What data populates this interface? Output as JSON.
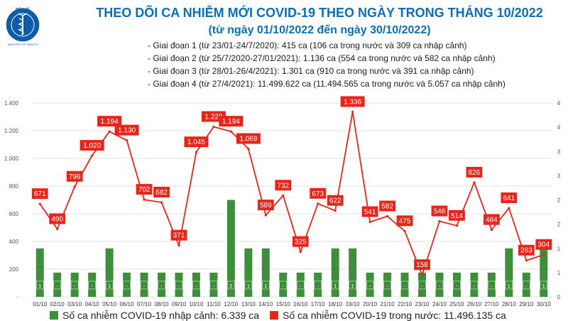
{
  "logo": {
    "top_text": "BỘ Y TẾ",
    "bottom_text": "MINISTRY OF HEALTH",
    "icon": "caduceus-icon"
  },
  "title_line1": "THEO DÕI CA NHIỄM MỚI COVID-19 THEO NGÀY TRONG THÁNG 10/2022",
  "title_line2": "(từ ngày 01/10/2022 đến ngày 30/10/2022)",
  "phases": [
    "- Giai đoạn 1 (từ 23/01-24/7/2020): 415 ca (106 ca trong nước và 309 ca nhập cảnh)",
    "- Giai đoạn 2 (từ 25/7/2020-27/01/2021): 1.136 ca (554 ca trong nước và 582 ca nhập cảnh)",
    "- Giai đoạn 3 (từ 28/01-26/4/2021): 1.301 ca (910 ca trong nước và 391 ca nhập cảnh)",
    "- Giai đoạn 4 (từ 27/4/2021): 11.499.622 ca (11.494.565 ca trong nước và 5.057 ca nhập cảnh)"
  ],
  "legend": {
    "bar_label": "Số ca nhiễm COVID-19 nhập cảnh: 6.339 ca",
    "line_label": "Số ca nhiễm COVID-19 trong nước: 11.496.135 ca"
  },
  "colors": {
    "bar": "#3d8f3a",
    "line": "#e8251b",
    "title": "#0a6fb5",
    "grid": "#e2e2e2"
  },
  "chart_data": {
    "type": "bar+line",
    "categories": [
      "01/10",
      "02/10",
      "03/10",
      "04/10",
      "05/10",
      "06/10",
      "07/10",
      "08/10",
      "09/10",
      "10/10",
      "11/10",
      "12/10",
      "13/10",
      "14/10",
      "15/10",
      "16/10",
      "17/10",
      "18/10",
      "19/10",
      "20/10",
      "21/10",
      "22/10",
      "23/10",
      "24/10",
      "25/10",
      "26/10",
      "27/10",
      "28/10",
      "29/10",
      "30/10"
    ],
    "series": [
      {
        "name": "Số ca nhiễm COVID-19 nhập cảnh: 6.339 ca",
        "type": "bar",
        "axis": "right",
        "values": [
          1,
          0,
          0,
          0,
          1,
          0,
          0,
          0,
          0,
          0,
          0,
          2,
          1,
          1,
          0,
          0,
          0,
          1,
          1,
          0,
          0,
          0,
          0,
          0,
          0,
          0,
          0,
          1,
          0,
          1
        ],
        "labels": [
          "1",
          "-",
          "-",
          "-",
          "1",
          "-",
          "-",
          "-",
          "-",
          "-",
          "-",
          "2",
          "1",
          "1",
          "-",
          "-",
          "-",
          "1",
          "1",
          "-",
          "-",
          "-",
          "-",
          "-",
          "-",
          "-",
          "-",
          "1",
          "-",
          "1"
        ]
      },
      {
        "name": "Số ca nhiễm COVID-19 trong nước: 11.496.135 ca",
        "type": "line",
        "axis": "left",
        "values": [
          671,
          490,
          796,
          1020,
          1194,
          1130,
          702,
          682,
          371,
          1045,
          1228,
          1194,
          1069,
          589,
          732,
          325,
          673,
          622,
          1336,
          541,
          582,
          475,
          158,
          546,
          514,
          826,
          484,
          641,
          263,
          304
        ],
        "labels": [
          "671",
          "490",
          "796",
          "1.020",
          "1.194",
          "1.130",
          "702",
          "682",
          "371",
          "1.045",
          "1.228",
          "1.194",
          "1.069",
          "589",
          "732",
          "325",
          "673",
          "622",
          "1.336",
          "541",
          "582",
          "475",
          "158",
          "546",
          "514",
          "826",
          "484",
          "641",
          "263",
          "304"
        ]
      }
    ],
    "y_left": {
      "ylim": [
        0,
        1400
      ],
      "ticks": [
        0,
        200,
        400,
        600,
        800,
        1000,
        1200,
        1400
      ],
      "tick_labels": [
        "-",
        "200",
        "400",
        "600",
        "800",
        "1.000",
        "1.200",
        "1.400"
      ]
    },
    "y_right": {
      "ylim": [
        0,
        4
      ],
      "ticks": [
        0,
        0.5,
        1,
        1.5,
        2,
        2.5,
        3,
        3.5,
        4
      ],
      "tick_labels": [
        "0",
        "1",
        "1",
        "2",
        "2",
        "3",
        "3",
        "4",
        "4"
      ]
    },
    "grid": true,
    "legend_position": "bottom"
  }
}
